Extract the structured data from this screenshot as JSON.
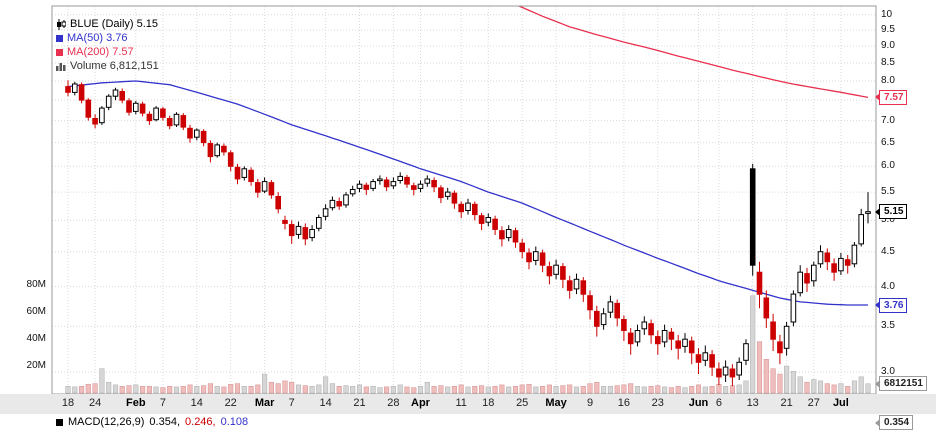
{
  "header": {
    "symbol_label": "BLUE (Daily) 5.15",
    "ma50_label": "MA(50) 3.76",
    "ma200_label": "MA(200) 7.57",
    "volume_label": "Volume 6,812,151"
  },
  "macd": {
    "label": "MACD(12,26,9)",
    "v1": "0.354,",
    "v2": "0.246,",
    "v3": "0.108"
  },
  "colors": {
    "up": "#000000",
    "down": "#cc0000",
    "ma50": "#3333cc",
    "ma200": "#e8304f",
    "vol_up_fill": "#d6d6d6",
    "vol_up_stroke": "#ababab",
    "vol_down_fill": "#f0bdbd",
    "vol_down_stroke": "#d49090",
    "grid": "#d9d9d9",
    "border": "#999999",
    "volume_legend_text": "#333333"
  },
  "chart_data": {
    "type": "candlestick",
    "symbol": "BLUE",
    "timeframe": "Daily",
    "last_price": 5.15,
    "scale": "log",
    "ylim": [
      2.8,
      10.3
    ],
    "volume_unit": "millions",
    "legend_position": "top-left",
    "grid": true,
    "price_ticks": [
      {
        "p": 10,
        "label": "10"
      },
      {
        "p": 9.5,
        "label": "9.5"
      },
      {
        "p": 9.0,
        "label": "9.0"
      },
      {
        "p": 8.5,
        "label": "8.5"
      },
      {
        "p": 8.0,
        "label": "8.0"
      },
      {
        "p": 7.0,
        "label": "7.0"
      },
      {
        "p": 6.5,
        "label": "6.5"
      },
      {
        "p": 6.0,
        "label": "6.0"
      },
      {
        "p": 5.5,
        "label": "5.5"
      },
      {
        "p": 5.0,
        "label": "5.0"
      },
      {
        "p": 4.5,
        "label": "4.5"
      },
      {
        "p": 4.0,
        "label": "4.0"
      },
      {
        "p": 3.5,
        "label": "3.5"
      },
      {
        "p": 3.0,
        "label": "3.0"
      }
    ],
    "grid_prices": [
      3,
      3.5,
      4,
      4.5,
      5,
      5.5,
      6,
      6.5,
      7,
      7.5,
      8,
      8.5,
      9,
      9.5,
      10
    ],
    "volume_ticks": [
      {
        "v": 80,
        "label": "80M"
      },
      {
        "v": 60,
        "label": "60M"
      },
      {
        "v": 40,
        "label": "40M"
      },
      {
        "v": 20,
        "label": "20M"
      }
    ],
    "x_ticks": [
      {
        "i": 0,
        "label": "18"
      },
      {
        "i": 4,
        "label": "24"
      },
      {
        "i": 10,
        "label": "Feb",
        "bold": true
      },
      {
        "i": 14,
        "label": "7"
      },
      {
        "i": 19,
        "label": "14"
      },
      {
        "i": 24,
        "label": "22"
      },
      {
        "i": 29,
        "label": "Mar",
        "bold": true
      },
      {
        "i": 33,
        "label": "7"
      },
      {
        "i": 38,
        "label": "14"
      },
      {
        "i": 43,
        "label": "21"
      },
      {
        "i": 48,
        "label": "28"
      },
      {
        "i": 52,
        "label": "Apr",
        "bold": true
      },
      {
        "i": 58,
        "label": "11"
      },
      {
        "i": 62,
        "label": "18"
      },
      {
        "i": 67,
        "label": "25"
      },
      {
        "i": 72,
        "label": "May",
        "bold": true
      },
      {
        "i": 77,
        "label": "9"
      },
      {
        "i": 82,
        "label": "16"
      },
      {
        "i": 87,
        "label": "23"
      },
      {
        "i": 93,
        "label": "Jun",
        "bold": true
      },
      {
        "i": 96,
        "label": "6"
      },
      {
        "i": 101,
        "label": "13"
      },
      {
        "i": 106,
        "label": "21"
      },
      {
        "i": 110,
        "label": "27"
      },
      {
        "i": 114,
        "label": "Jul",
        "bold": true
      }
    ],
    "candles": [
      [
        7.85,
        8.02,
        7.6,
        7.7,
        5
      ],
      [
        7.7,
        7.98,
        7.62,
        7.92,
        4.5
      ],
      [
        7.9,
        7.96,
        7.42,
        7.5,
        5
      ],
      [
        7.5,
        7.55,
        7.0,
        7.08,
        6.5
      ],
      [
        7.05,
        7.15,
        6.82,
        6.92,
        7
      ],
      [
        6.95,
        7.35,
        6.9,
        7.3,
        18
      ],
      [
        7.32,
        7.65,
        7.25,
        7.6,
        8
      ],
      [
        7.6,
        7.82,
        7.5,
        7.76,
        6
      ],
      [
        7.72,
        7.8,
        7.42,
        7.5,
        5
      ],
      [
        7.48,
        7.55,
        7.12,
        7.2,
        5.5
      ],
      [
        7.22,
        7.48,
        7.15,
        7.42,
        6
      ],
      [
        7.4,
        7.46,
        7.1,
        7.18,
        5
      ],
      [
        7.15,
        7.22,
        6.9,
        7.0,
        5
      ],
      [
        7.02,
        7.35,
        6.98,
        7.3,
        4.5
      ],
      [
        7.28,
        7.33,
        7.0,
        7.08,
        4
      ],
      [
        7.05,
        7.12,
        6.8,
        6.88,
        5
      ],
      [
        6.9,
        7.2,
        6.85,
        7.15,
        4.5
      ],
      [
        7.12,
        7.18,
        6.78,
        6.85,
        5
      ],
      [
        6.82,
        6.9,
        6.5,
        6.6,
        6
      ],
      [
        6.62,
        6.82,
        6.55,
        6.78,
        5
      ],
      [
        6.75,
        6.8,
        6.42,
        6.5,
        5.5
      ],
      [
        6.48,
        6.55,
        6.08,
        6.2,
        7
      ],
      [
        6.22,
        6.5,
        6.18,
        6.45,
        5
      ],
      [
        6.42,
        6.48,
        6.22,
        6.3,
        4.5
      ],
      [
        6.28,
        6.33,
        5.9,
        6.0,
        6.5
      ],
      [
        5.98,
        6.05,
        5.65,
        5.75,
        7
      ],
      [
        5.78,
        6.0,
        5.72,
        5.95,
        5
      ],
      [
        5.92,
        5.98,
        5.62,
        5.7,
        5
      ],
      [
        5.68,
        5.75,
        5.4,
        5.5,
        6
      ],
      [
        5.52,
        5.78,
        5.48,
        5.7,
        14
      ],
      [
        5.68,
        5.73,
        5.38,
        5.45,
        8
      ],
      [
        5.42,
        5.5,
        5.12,
        5.2,
        7
      ],
      [
        5.0,
        5.08,
        4.85,
        4.95,
        9
      ],
      [
        4.93,
        5.0,
        4.62,
        4.75,
        8
      ],
      [
        4.77,
        4.98,
        4.7,
        4.9,
        6
      ],
      [
        4.88,
        4.95,
        4.6,
        4.7,
        5.5
      ],
      [
        4.72,
        4.92,
        4.66,
        4.85,
        5
      ],
      [
        4.87,
        5.1,
        4.82,
        5.05,
        6
      ],
      [
        5.07,
        5.28,
        5.0,
        5.2,
        12
      ],
      [
        5.22,
        5.42,
        5.17,
        5.35,
        7
      ],
      [
        5.33,
        5.4,
        5.18,
        5.25,
        5
      ],
      [
        5.27,
        5.5,
        5.22,
        5.45,
        5.5
      ],
      [
        5.47,
        5.62,
        5.42,
        5.55,
        5
      ],
      [
        5.57,
        5.72,
        5.5,
        5.65,
        6
      ],
      [
        5.63,
        5.68,
        5.45,
        5.55,
        4.5
      ],
      [
        5.57,
        5.75,
        5.52,
        5.7,
        5
      ],
      [
        5.72,
        5.82,
        5.64,
        5.75,
        4
      ],
      [
        5.73,
        5.79,
        5.52,
        5.6,
        4.5
      ],
      [
        5.62,
        5.78,
        5.56,
        5.7,
        5
      ],
      [
        5.72,
        5.88,
        5.66,
        5.8,
        6
      ],
      [
        5.78,
        5.83,
        5.58,
        5.65,
        4.5
      ],
      [
        5.62,
        5.68,
        5.44,
        5.55,
        4
      ],
      [
        5.57,
        5.72,
        5.5,
        5.65,
        5
      ],
      [
        5.67,
        5.82,
        5.6,
        5.75,
        8
      ],
      [
        5.72,
        5.78,
        5.5,
        5.6,
        5
      ],
      [
        5.58,
        5.63,
        5.3,
        5.4,
        5.5
      ],
      [
        5.42,
        5.58,
        5.36,
        5.5,
        4.5
      ],
      [
        5.48,
        5.53,
        5.2,
        5.3,
        5
      ],
      [
        5.28,
        5.33,
        5.04,
        5.15,
        6
      ],
      [
        5.17,
        5.38,
        5.1,
        5.3,
        4.5
      ],
      [
        5.28,
        5.33,
        5.0,
        5.1,
        5
      ],
      [
        5.08,
        5.13,
        4.84,
        4.95,
        5.5
      ],
      [
        4.97,
        5.12,
        4.9,
        5.05,
        4.5
      ],
      [
        5.02,
        5.08,
        4.76,
        4.85,
        5
      ],
      [
        4.83,
        4.9,
        4.58,
        4.7,
        6
      ],
      [
        4.72,
        4.92,
        4.66,
        4.85,
        4.5
      ],
      [
        4.83,
        4.88,
        4.56,
        4.65,
        5
      ],
      [
        4.63,
        4.7,
        4.4,
        4.5,
        6
      ],
      [
        4.48,
        4.55,
        4.24,
        4.35,
        6.5
      ],
      [
        4.37,
        4.58,
        4.3,
        4.5,
        4.5
      ],
      [
        4.48,
        4.53,
        4.2,
        4.3,
        5
      ],
      [
        4.28,
        4.35,
        4.03,
        4.15,
        6
      ],
      [
        4.17,
        4.38,
        4.1,
        4.3,
        5
      ],
      [
        4.28,
        4.33,
        3.98,
        4.1,
        5.5
      ],
      [
        4.08,
        4.15,
        3.84,
        3.95,
        6
      ],
      [
        3.97,
        4.18,
        3.9,
        4.1,
        4.5
      ],
      [
        4.08,
        4.13,
        3.8,
        3.9,
        5
      ],
      [
        3.88,
        3.95,
        3.58,
        3.7,
        7
      ],
      [
        3.68,
        3.75,
        3.38,
        3.5,
        8
      ],
      [
        3.52,
        3.72,
        3.46,
        3.65,
        5
      ],
      [
        3.67,
        3.88,
        3.6,
        3.8,
        5
      ],
      [
        3.78,
        3.83,
        3.5,
        3.6,
        5.5
      ],
      [
        3.58,
        3.63,
        3.33,
        3.45,
        6
      ],
      [
        3.42,
        3.48,
        3.18,
        3.3,
        7
      ],
      [
        3.32,
        3.52,
        3.27,
        3.45,
        5
      ],
      [
        3.47,
        3.62,
        3.4,
        3.55,
        4.5
      ],
      [
        3.53,
        3.58,
        3.3,
        3.4,
        5
      ],
      [
        3.38,
        3.45,
        3.18,
        3.3,
        5.5
      ],
      [
        3.32,
        3.52,
        3.26,
        3.45,
        4.5
      ],
      [
        3.43,
        3.48,
        3.23,
        3.35,
        4
      ],
      [
        3.33,
        3.4,
        3.13,
        3.25,
        5
      ],
      [
        3.27,
        3.42,
        3.2,
        3.35,
        4
      ],
      [
        3.33,
        3.38,
        3.08,
        3.2,
        5
      ],
      [
        3.18,
        3.25,
        2.98,
        3.1,
        6
      ],
      [
        3.12,
        3.28,
        3.06,
        3.2,
        4.5
      ],
      [
        3.18,
        3.23,
        2.96,
        3.05,
        5
      ],
      [
        3.03,
        3.1,
        2.87,
        2.95,
        6.5
      ],
      [
        2.97,
        3.12,
        2.9,
        3.05,
        5
      ],
      [
        3.03,
        3.08,
        2.86,
        2.95,
        5.5
      ],
      [
        2.97,
        3.15,
        2.92,
        3.1,
        6
      ],
      [
        3.12,
        3.35,
        3.07,
        3.3,
        9
      ],
      [
        5.95,
        6.05,
        4.15,
        4.3,
        72
      ],
      [
        4.2,
        4.35,
        3.72,
        3.9,
        38
      ],
      [
        3.85,
        3.95,
        3.48,
        3.6,
        25
      ],
      [
        3.55,
        3.65,
        3.22,
        3.35,
        18
      ],
      [
        3.32,
        3.4,
        3.08,
        3.2,
        14
      ],
      [
        3.25,
        3.55,
        3.17,
        3.5,
        20
      ],
      [
        3.55,
        3.95,
        3.5,
        3.9,
        16
      ],
      [
        3.92,
        4.3,
        3.87,
        4.2,
        12
      ],
      [
        4.18,
        4.26,
        3.93,
        4.05,
        8
      ],
      [
        4.08,
        4.35,
        4.0,
        4.3,
        10
      ],
      [
        4.32,
        4.6,
        4.26,
        4.5,
        9
      ],
      [
        4.48,
        4.55,
        4.23,
        4.35,
        7
      ],
      [
        4.32,
        4.4,
        4.08,
        4.2,
        6
      ],
      [
        4.22,
        4.48,
        4.16,
        4.4,
        7
      ],
      [
        4.38,
        4.45,
        4.18,
        4.3,
        5
      ],
      [
        4.32,
        4.65,
        4.27,
        4.6,
        9
      ],
      [
        4.62,
        5.2,
        4.58,
        5.1,
        12
      ],
      [
        5.12,
        5.5,
        4.95,
        5.15,
        6.8
      ]
    ],
    "ma50": [
      [
        0,
        7.85
      ],
      [
        5,
        7.95
      ],
      [
        10,
        8.0
      ],
      [
        15,
        7.9
      ],
      [
        20,
        7.65
      ],
      [
        25,
        7.4
      ],
      [
        29,
        7.15
      ],
      [
        33,
        6.9
      ],
      [
        38,
        6.65
      ],
      [
        43,
        6.4
      ],
      [
        48,
        6.15
      ],
      [
        52,
        5.95
      ],
      [
        58,
        5.7
      ],
      [
        62,
        5.5
      ],
      [
        67,
        5.3
      ],
      [
        72,
        5.05
      ],
      [
        77,
        4.82
      ],
      [
        82,
        4.6
      ],
      [
        87,
        4.4
      ],
      [
        93,
        4.18
      ],
      [
        96,
        4.08
      ],
      [
        101,
        3.95
      ],
      [
        105,
        3.85
      ],
      [
        108,
        3.8
      ],
      [
        112,
        3.77
      ],
      [
        115,
        3.76
      ],
      [
        118,
        3.76
      ]
    ],
    "ma200": [
      [
        62,
        10.7
      ],
      [
        66,
        10.35
      ],
      [
        70,
        9.95
      ],
      [
        74,
        9.6
      ],
      [
        78,
        9.35
      ],
      [
        82,
        9.12
      ],
      [
        86,
        8.92
      ],
      [
        90,
        8.7
      ],
      [
        94,
        8.5
      ],
      [
        98,
        8.3
      ],
      [
        102,
        8.12
      ],
      [
        106,
        7.95
      ],
      [
        110,
        7.82
      ],
      [
        114,
        7.7
      ],
      [
        118,
        7.57
      ]
    ],
    "callouts": {
      "ma200": {
        "value": "7.57",
        "price": 7.57,
        "border": "#e8304f",
        "text": "#e8304f"
      },
      "last": {
        "value": "5.15",
        "price": 5.15,
        "border": "#000000",
        "text": "#000000"
      },
      "ma50": {
        "value": "3.76",
        "price": 3.76,
        "border": "#3333cc",
        "text": "#3333cc"
      },
      "volume": {
        "value": "6812151",
        "border": "#9a9a9a",
        "text": "#222222"
      },
      "macd": {
        "value": "0.354",
        "border": "#9a9a9a",
        "text": "#222222"
      }
    }
  }
}
